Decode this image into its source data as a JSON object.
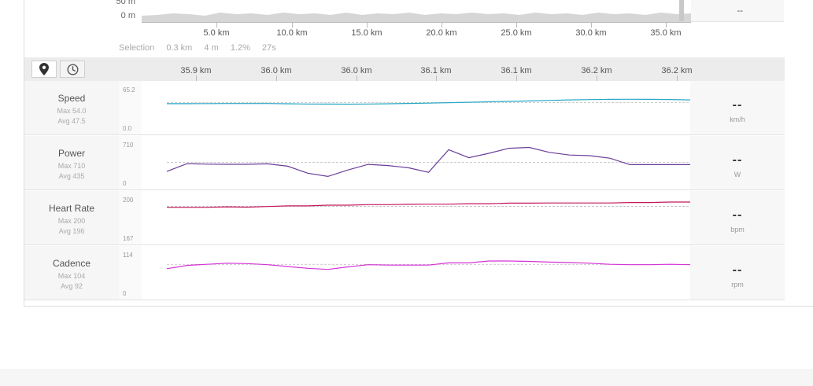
{
  "elevation": {
    "axis_top_label": "50 m",
    "axis_zero_label": "0 m",
    "km_labels": [
      "5.0 km",
      "10.0 km",
      "15.0 km",
      "20.0 km",
      "25.0 km",
      "30.0 km",
      "35.0 km"
    ],
    "side_value": "--"
  },
  "selection": {
    "label": "Selection",
    "distance": "0.3 km",
    "elevation": "4 m",
    "grade": "1.2%",
    "time": "27s"
  },
  "zoom": {
    "km_labels": [
      "35.9 km",
      "36.0 km",
      "36.0 km",
      "36.1 km",
      "36.1 km",
      "36.2 km",
      "36.2 km"
    ]
  },
  "icons": {
    "map_view": "map-pin-icon",
    "time_view": "clock-icon"
  },
  "metrics": [
    {
      "key": "speed",
      "name": "Speed",
      "max": "Max 54.0",
      "avg": "Avg 47.5",
      "axis_max": "65.2",
      "axis_min": "0.0",
      "value": "--",
      "unit": "km/h",
      "color": "#29a8c6",
      "ymax": 65.2,
      "ymin": 0,
      "avg_value": 47.5,
      "points": [
        45.6,
        45.6,
        45.8,
        45.9,
        45.9,
        45.9,
        45.5,
        45.2,
        45.0,
        44.9,
        45.1,
        45.5,
        46.0,
        46.5,
        47.2,
        47.8,
        48.6,
        49.2,
        49.9,
        50.8,
        51.5,
        52.0,
        52.4,
        52.5,
        52.4,
        52.1,
        51.6
      ]
    },
    {
      "key": "power",
      "name": "Power",
      "max": "Max 710",
      "avg": "Avg 435",
      "axis_max": "710",
      "axis_min": "0",
      "value": "--",
      "unit": "W",
      "color": "#6b3d9a",
      "ymax": 710,
      "ymin": 0,
      "avg_value": 435,
      "points": [
        280,
        413,
        405,
        402,
        402,
        410,
        370,
        250,
        195,
        305,
        400,
        380,
        343,
        265,
        650,
        515,
        590,
        675,
        690,
        605,
        560,
        549,
        507,
        397,
        397,
        397,
        397
      ]
    },
    {
      "key": "heart_rate",
      "name": "Heart Rate",
      "max": "Max 200",
      "avg": "Avg 196",
      "axis_max": "200",
      "axis_min": "167",
      "value": "--",
      "unit": "bpm",
      "color": "#c2185b",
      "ymax": 200,
      "ymin": 167,
      "avg_value": 196,
      "points": [
        195.2,
        195.2,
        195.2,
        195.6,
        195.3,
        195.8,
        196.3,
        196.3,
        196.9,
        196.9,
        197.3,
        197.3,
        197.6,
        197.7,
        197.7,
        198.1,
        198.1,
        198.5,
        198.5,
        198.6,
        198.6,
        198.6,
        198.6,
        199.0,
        199.0,
        199.4,
        199.4
      ]
    },
    {
      "key": "cadence",
      "name": "Cadence",
      "max": "Max 104",
      "avg": "Avg 92",
      "axis_max": "114",
      "axis_min": "0",
      "value": "--",
      "unit": "rpm",
      "color": "#d633d6",
      "ymax": 114,
      "ymin": 0,
      "avg_value": 92,
      "points": [
        80,
        89,
        92,
        95,
        94,
        91,
        86,
        81,
        78,
        85,
        91,
        90,
        90,
        90,
        96,
        96,
        101,
        101,
        100,
        98,
        97,
        95,
        92,
        91,
        91,
        92,
        91
      ]
    }
  ]
}
